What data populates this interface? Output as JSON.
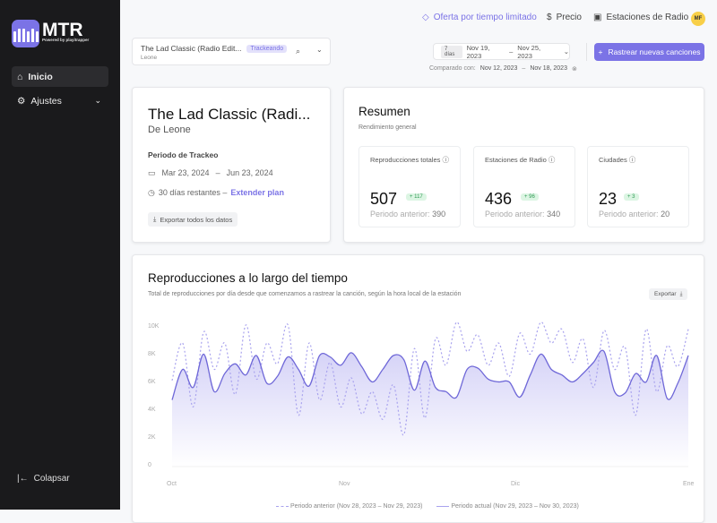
{
  "sidebar": {
    "brand": "MTR",
    "brand_sub": "Powered by playitrapper",
    "items": [
      {
        "label": "Inicio",
        "icon": "home-icon",
        "active": true
      },
      {
        "label": "Ajustes",
        "icon": "gear-icon"
      }
    ],
    "collapse": "Colapsar"
  },
  "topbar": {
    "offer": "Oferta por tiempo limitado",
    "price": "Precio",
    "stations": "Estaciones de Radio",
    "avatar": "MF",
    "accent": "#7b73e6"
  },
  "song_selector": {
    "title": "The Lad Classic (Radio Edit...",
    "badge": "Trackeando",
    "artist": "Leone"
  },
  "date_range": {
    "preset": "7 días",
    "start": "Nov 19, 2023",
    "end": "Nov 25, 2023",
    "compared_label": "Comparado con:",
    "compared_start": "Nov 12, 2023",
    "compared_end": "Nov 18, 2023"
  },
  "track_button": "Rastrear nuevas canciones",
  "song_card": {
    "title": "The Lad Classic (Radi...",
    "artist": "De Leone",
    "period_label": "Periodo de Trackeo",
    "start": "Mar 23, 2024",
    "end": "Jun 23, 2024",
    "remaining": "30 días restantes –",
    "extend": "Extender plan",
    "export": "Exportar todos los datos"
  },
  "summary": {
    "title": "Resumen",
    "subtitle": "Rendimiento general",
    "stats": [
      {
        "label": "Reproducciones totales",
        "value": "507",
        "delta": "+ 117",
        "prev_label": "Periodo anterior:",
        "prev": "390"
      },
      {
        "label": "Estaciones de Radio",
        "value": "436",
        "delta": "+ 96",
        "prev_label": "Periodo anterior:",
        "prev": "340"
      },
      {
        "label": "Ciudades",
        "value": "23",
        "delta": "+ 3",
        "prev_label": "Periodo anterior:",
        "prev": "20"
      }
    ]
  },
  "chart_card": {
    "title": "Reproducciones a lo largo del tiempo",
    "subtitle": "Total de reproducciones por día desde que comenzamos a rastrear la canción, según la hora local de la estación",
    "export": "Exportar"
  },
  "chart_data": {
    "type": "area",
    "ylim": [
      0,
      10000
    ],
    "y_ticks": [
      "0",
      "2K",
      "4K",
      "6K",
      "8K",
      "10K"
    ],
    "x_ticks": [
      "Oct",
      "Nov",
      "Dic",
      "Ene"
    ],
    "grid": false,
    "legend_position": "bottom",
    "series": [
      {
        "name": "Periodo anterior (Nov 28, 2023 – Nov 29, 2023)",
        "style": "dotted",
        "color": "#a9a3ee",
        "values": [
          6200,
          8900,
          4300,
          9700,
          7000,
          8900,
          5200,
          10200,
          6300,
          8900,
          7400,
          10200,
          3700,
          8900,
          4800,
          7500,
          4300,
          6400,
          3800,
          5400,
          3400,
          5900,
          2300,
          8500,
          3500,
          9200,
          7300,
          10400,
          8300,
          9500,
          7300,
          8900,
          6500,
          9600,
          8100,
          10400,
          8900,
          9900,
          7500,
          9200,
          5700,
          9800,
          7000,
          8600,
          3700,
          9900,
          5400,
          8700,
          7200,
          9900
        ]
      },
      {
        "name": "Periodo actual (Nov 29, 2023 – Nov 30, 2023)",
        "style": "solid",
        "color": "#6f68d8",
        "values": [
          4800,
          7000,
          5700,
          8100,
          5400,
          6700,
          7400,
          6600,
          8000,
          6000,
          6500,
          7900,
          7000,
          5800,
          8000,
          7900,
          7300,
          8200,
          7200,
          6100,
          7000,
          8000,
          7700,
          5500,
          7600,
          5700,
          5400,
          5000,
          7000,
          7100,
          6300,
          6100,
          6100,
          5000,
          6600,
          8100,
          7000,
          6600,
          6100,
          6700,
          7500,
          8300,
          5400,
          5300,
          6700,
          6100,
          8000,
          4900,
          6000,
          8000
        ]
      }
    ]
  }
}
